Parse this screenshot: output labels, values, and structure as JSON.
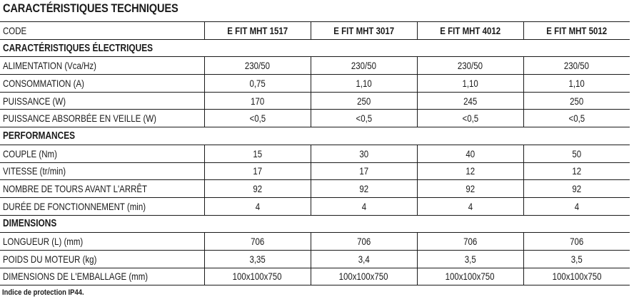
{
  "title": "CARACTÉRISTIQUES TECHNIQUES",
  "table": {
    "code_label": "CODE",
    "models": [
      "E FIT MHT 1517",
      "E FIT MHT 3017",
      "E FIT MHT 4012",
      "E FIT MHT 5012"
    ],
    "sections": [
      {
        "heading": "CARACTÉRISTIQUES ÉLECTRIQUES",
        "rows": [
          {
            "label": "ALIMENTATION (Vca/Hz)",
            "values": [
              "230/50",
              "230/50",
              "230/50",
              "230/50"
            ]
          },
          {
            "label": "CONSOMMATION (A)",
            "values": [
              "0,75",
              "1,10",
              "1,10",
              "1,10"
            ]
          },
          {
            "label": "PUISSANCE (W)",
            "values": [
              "170",
              "250",
              "245",
              "250"
            ]
          },
          {
            "label": "PUISSANCE ABSORBÉE EN VEILLE (W)",
            "values": [
              "<0,5",
              "<0,5",
              "<0,5",
              "<0,5"
            ]
          }
        ]
      },
      {
        "heading": "PERFORMANCES",
        "rows": [
          {
            "label": "COUPLE (Nm)",
            "values": [
              "15",
              "30",
              "40",
              "50"
            ]
          },
          {
            "label": "VITESSE (tr/min)",
            "values": [
              "17",
              "17",
              "12",
              "12"
            ]
          },
          {
            "label": "NOMBRE DE TOURS AVANT L'ARRÊT",
            "values": [
              "92",
              "92",
              "92",
              "92"
            ]
          },
          {
            "label": "DURÉE DE FONCTIONNEMENT (min)",
            "values": [
              "4",
              "4",
              "4",
              "4"
            ]
          }
        ]
      },
      {
        "heading": "DIMENSIONS",
        "rows": [
          {
            "label": "LONGUEUR (L) (mm)",
            "values": [
              "706",
              "706",
              "706",
              "706"
            ]
          },
          {
            "label": "POIDS DU MOTEUR (kg)",
            "values": [
              "3,35",
              "3,4",
              "3,5",
              "3,5"
            ]
          },
          {
            "label": "DIMENSIONS DE L'EMBALLAGE (mm)",
            "values": [
              "100x100x750",
              "100x100x750",
              "100x100x750",
              "100x100x750"
            ]
          }
        ]
      }
    ]
  },
  "footnote": "Indice de protection IP44."
}
